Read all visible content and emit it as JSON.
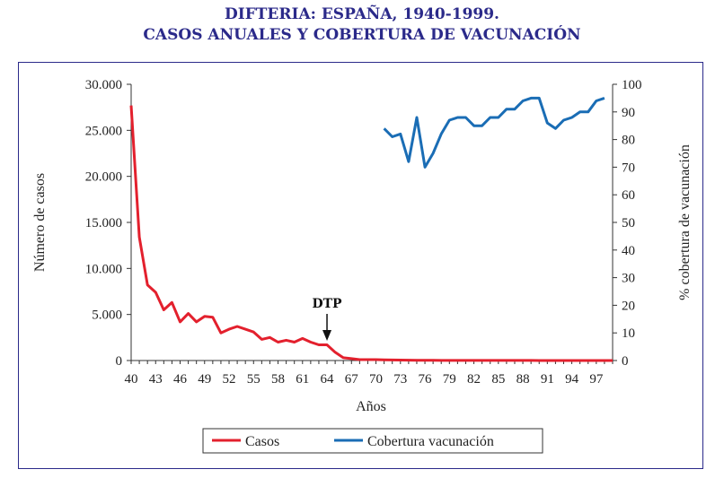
{
  "chart_data": {
    "type": "line",
    "title": "DIFTERIA: ESPAÑA, 1940-1999.",
    "subtitle": "CASOS ANUALES Y COBERTURA DE VACUNACIÓN",
    "xlabel": "Años",
    "ylabel": "Número de casos",
    "y2label": "% cobertura de vacunación",
    "xlim": [
      40,
      99
    ],
    "ylim": [
      0,
      30000
    ],
    "y2lim": [
      0,
      100
    ],
    "x_ticks": [
      "40",
      "43",
      "46",
      "49",
      "52",
      "55",
      "58",
      "61",
      "64",
      "67",
      "70",
      "73",
      "76",
      "79",
      "82",
      "85",
      "88",
      "91",
      "94",
      "97"
    ],
    "y_ticks": [
      "0",
      "5.000",
      "10.000",
      "15.000",
      "20.000",
      "25.000",
      "30.000"
    ],
    "y2_ticks": [
      "0",
      "10",
      "20",
      "30",
      "40",
      "50",
      "60",
      "70",
      "80",
      "90",
      "100"
    ],
    "grid": false,
    "legend_position": "bottom",
    "annotation": {
      "text": "DTP",
      "x": 64
    },
    "series": [
      {
        "name": "Casos",
        "axis": "left",
        "color": "#e3202d",
        "x": [
          40,
          41,
          42,
          43,
          44,
          45,
          46,
          47,
          48,
          49,
          50,
          51,
          52,
          53,
          54,
          55,
          56,
          57,
          58,
          59,
          60,
          61,
          62,
          63,
          64,
          65,
          66,
          67,
          68,
          69,
          70,
          71,
          72,
          73,
          74,
          75,
          76,
          77,
          78,
          79,
          80,
          81,
          82,
          83,
          84,
          85,
          86,
          87,
          88,
          89,
          90,
          91,
          92,
          93,
          94,
          95,
          96,
          97,
          98,
          99
        ],
        "values": [
          27700,
          13400,
          8200,
          7400,
          5500,
          6300,
          4200,
          5100,
          4200,
          4800,
          4700,
          3000,
          3400,
          3700,
          3400,
          3100,
          2300,
          2500,
          2000,
          2200,
          2000,
          2400,
          2000,
          1700,
          1700,
          900,
          300,
          200,
          100,
          100,
          100,
          80,
          60,
          50,
          40,
          30,
          20,
          20,
          10,
          10,
          10,
          10,
          5,
          5,
          5,
          5,
          5,
          5,
          5,
          5,
          0,
          0,
          0,
          0,
          0,
          0,
          0,
          0,
          0,
          0
        ]
      },
      {
        "name": "Cobertura vacunación",
        "axis": "right",
        "color": "#1a6db5",
        "x": [
          71,
          72,
          73,
          74,
          75,
          76,
          77,
          78,
          79,
          80,
          81,
          82,
          83,
          84,
          85,
          86,
          87,
          88,
          89,
          90,
          91,
          92,
          93,
          94,
          95,
          96,
          97,
          98
        ],
        "values": [
          84,
          81,
          82,
          72,
          88,
          70,
          75,
          82,
          87,
          88,
          88,
          85,
          85,
          88,
          88,
          91,
          91,
          94,
          95,
          95,
          86,
          84,
          87,
          88,
          90,
          90,
          94,
          95
        ]
      }
    ]
  }
}
